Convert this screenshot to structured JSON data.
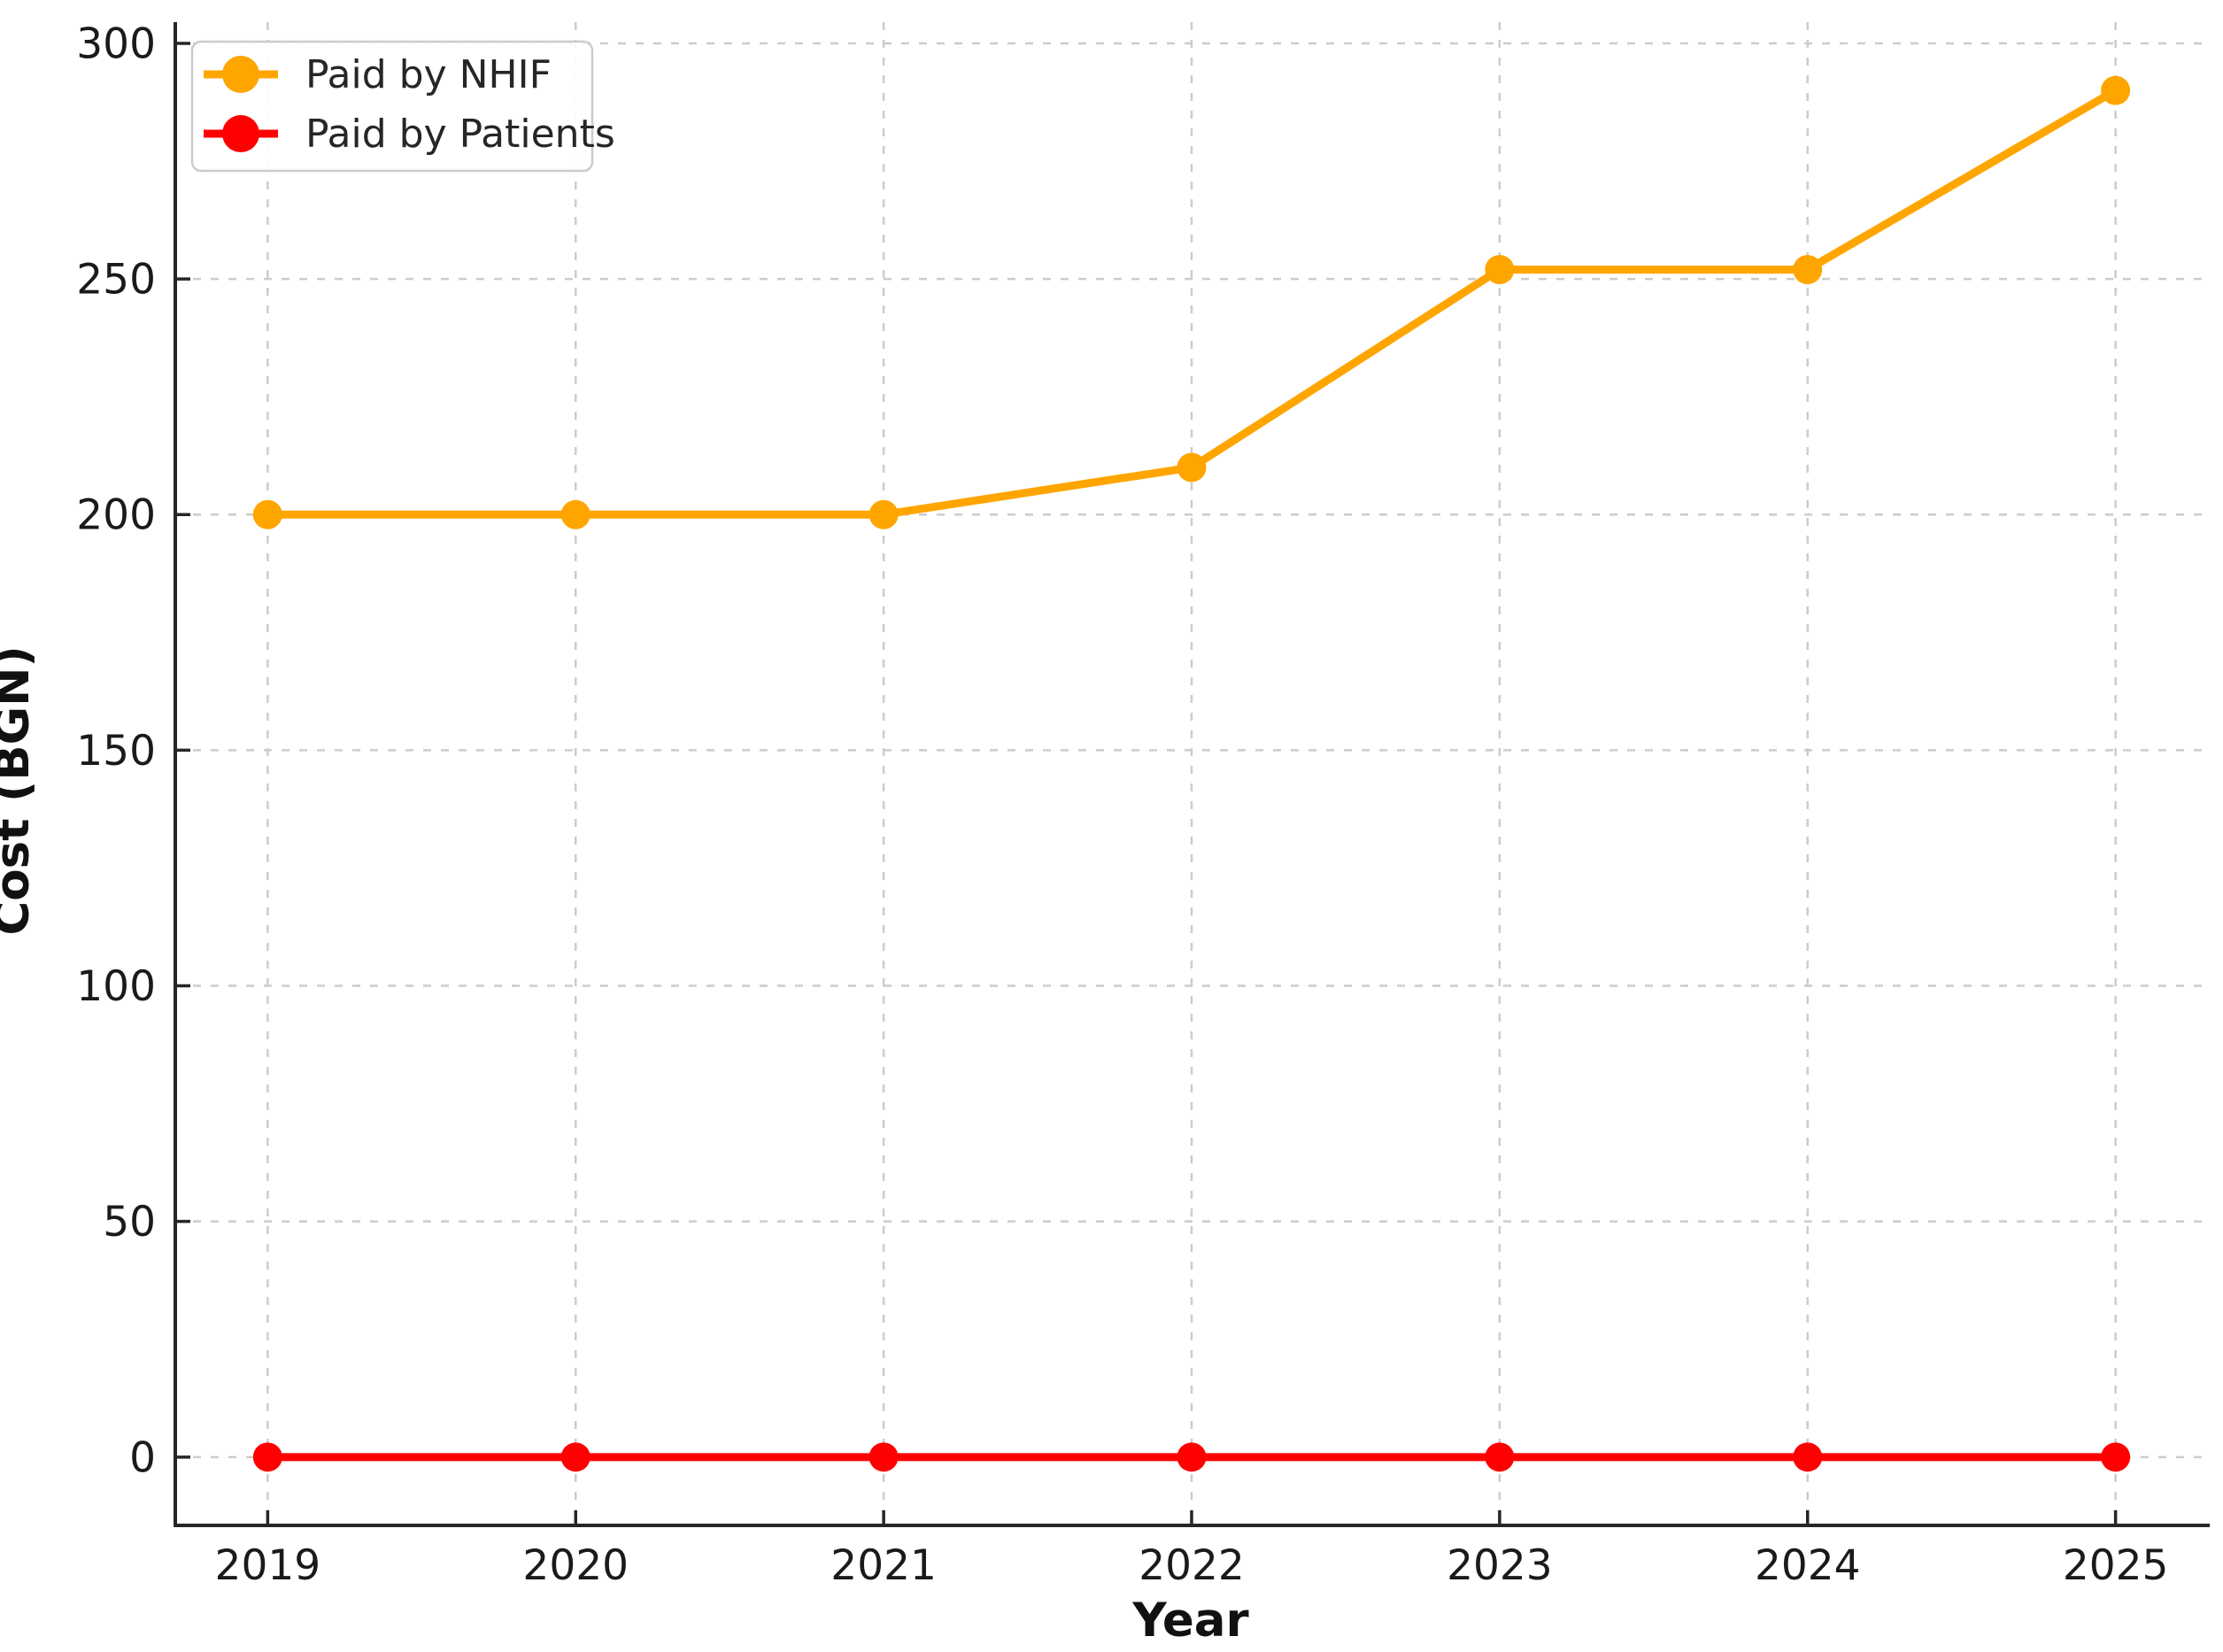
{
  "chart_data": {
    "type": "line",
    "title": "",
    "xlabel": "Year",
    "ylabel": "Cost (BGN)",
    "x": [
      2019,
      2020,
      2021,
      2022,
      2023,
      2024,
      2025
    ],
    "xtick_labels": [
      "2019",
      "2020",
      "2021",
      "2022",
      "2023",
      "2024",
      "2025"
    ],
    "yticks": [
      0,
      50,
      100,
      150,
      200,
      250,
      300
    ],
    "ytick_labels": [
      "0",
      "50",
      "100",
      "150",
      "200",
      "250",
      "300"
    ],
    "xlim": [
      2018.7,
      2025.3
    ],
    "ylim": [
      -14.5,
      304.5
    ],
    "grid": true,
    "grid_style": "dashed",
    "legend_position": "upper-left",
    "marker": "circle",
    "series": [
      {
        "name": "Paid by NHIF",
        "color": "#FFA500",
        "values": [
          200,
          200,
          200,
          210,
          252,
          252,
          290
        ]
      },
      {
        "name": "Paid by Patients",
        "color": "#FF0000",
        "values": [
          0,
          0,
          0,
          0,
          0,
          0,
          0
        ]
      }
    ],
    "colors": {
      "background": "#FFFFFF",
      "axis": "#262626",
      "grid": "#CCCCCC",
      "tick_label": "#1A1A1A"
    }
  }
}
